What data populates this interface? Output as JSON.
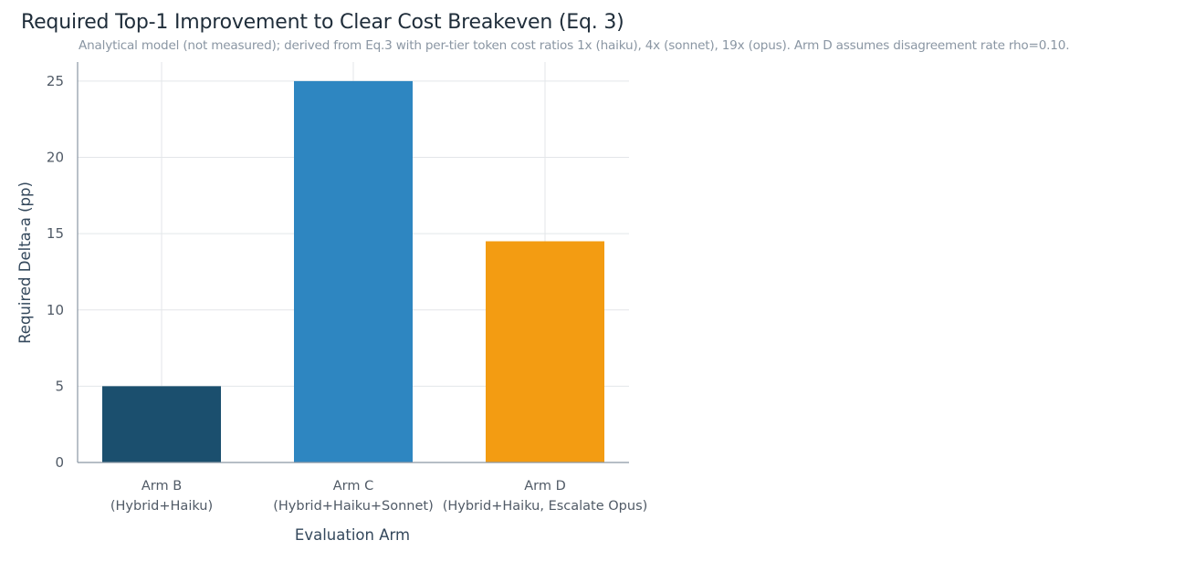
{
  "chart_data": {
    "type": "bar",
    "title": "Required Top-1 Improvement to Clear Cost Breakeven (Eq. 3)",
    "subtitle": "Analytical model (not measured); derived from Eq.3 with per-tier token cost ratios 1x (haiku), 4x (sonnet), 19x (opus). Arm D assumes disagreement rate rho=0.10.",
    "xlabel": "Evaluation Arm",
    "ylabel": "Required Delta-a (pp)",
    "categories": [
      [
        "Arm B",
        "(Hybrid+Haiku)"
      ],
      [
        "Arm C",
        "(Hybrid+Haiku+Sonnet)"
      ],
      [
        "Arm D",
        "(Hybrid+Haiku, Escalate Opus)"
      ]
    ],
    "values": [
      5,
      25,
      14.5
    ],
    "colors": [
      "#1b4f6e",
      "#2e86c1",
      "#f39c12"
    ],
    "ylim": [
      0,
      26.25
    ],
    "yticks": [
      0,
      5,
      10,
      15,
      20,
      25
    ],
    "grid": true,
    "legend": "none"
  }
}
